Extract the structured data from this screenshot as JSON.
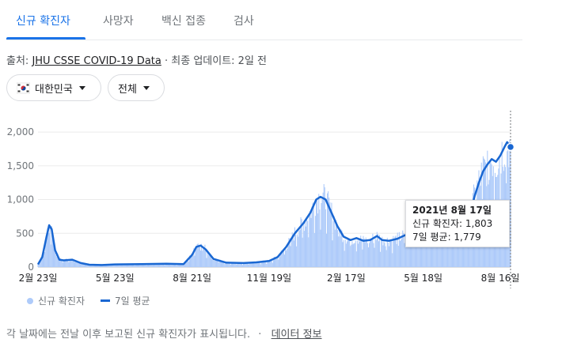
{
  "tabs": [
    "신규 확진자",
    "사망자",
    "백신 접종",
    "검사"
  ],
  "active_tab": 0,
  "source": {
    "prefix": "출처: ",
    "link": "JHU CSSE COVID-19 Data",
    "separator": " · ",
    "updated": "최종 업데이트: 2일 전"
  },
  "filters": {
    "country": "대한민국",
    "scope": "전체"
  },
  "tooltip": {
    "date": "2021년 8월 17일",
    "cases_line": "신규 확진자: 1,803",
    "avg_line": "7일 평균: 1,779"
  },
  "legend": {
    "cases": "신규 확진자",
    "avg": "7일 평균"
  },
  "footer": {
    "note": "각 날짜에는 전날 이후 보고된 신규 확진자가 표시됩니다.",
    "separator": "·",
    "link": "데이터 정보"
  },
  "colors": {
    "bars": "#aecbfa",
    "line": "#1967d2",
    "accent": "#1a73e8"
  },
  "chart_data": {
    "type": "bar",
    "ylim": [
      0,
      2200
    ],
    "y_ticks": [
      0,
      500,
      1000,
      1500,
      2000
    ],
    "y_tick_labels": [
      "0",
      "500",
      "1,000",
      "1,500",
      "2,000"
    ],
    "x_tick_labels": [
      "2월 23일",
      "5월 23일",
      "8월 21일",
      "11월 19일",
      "2월 17일",
      "5월 18일",
      "8월 16일"
    ],
    "x_tick_days": [
      0,
      90,
      180,
      270,
      360,
      450,
      540
    ],
    "series": [
      {
        "name": "7일 평균",
        "points": [
          [
            0,
            40
          ],
          [
            5,
            150
          ],
          [
            10,
            450
          ],
          [
            13,
            620
          ],
          [
            16,
            560
          ],
          [
            20,
            250
          ],
          [
            25,
            110
          ],
          [
            30,
            100
          ],
          [
            40,
            110
          ],
          [
            50,
            60
          ],
          [
            60,
            35
          ],
          [
            75,
            30
          ],
          [
            90,
            40
          ],
          [
            120,
            45
          ],
          [
            150,
            50
          ],
          [
            170,
            45
          ],
          [
            180,
            180
          ],
          [
            185,
            300
          ],
          [
            190,
            320
          ],
          [
            196,
            260
          ],
          [
            205,
            120
          ],
          [
            220,
            65
          ],
          [
            240,
            60
          ],
          [
            255,
            70
          ],
          [
            270,
            90
          ],
          [
            280,
            150
          ],
          [
            290,
            300
          ],
          [
            300,
            500
          ],
          [
            310,
            650
          ],
          [
            318,
            800
          ],
          [
            325,
            1000
          ],
          [
            330,
            1040
          ],
          [
            336,
            1000
          ],
          [
            343,
            800
          ],
          [
            350,
            600
          ],
          [
            357,
            450
          ],
          [
            365,
            400
          ],
          [
            372,
            430
          ],
          [
            380,
            390
          ],
          [
            388,
            400
          ],
          [
            396,
            460
          ],
          [
            402,
            400
          ],
          [
            410,
            390
          ],
          [
            420,
            420
          ],
          [
            430,
            480
          ],
          [
            440,
            530
          ],
          [
            450,
            600
          ],
          [
            460,
            650
          ],
          [
            470,
            640
          ],
          [
            480,
            620
          ],
          [
            490,
            630
          ],
          [
            500,
            700
          ],
          [
            505,
            800
          ],
          [
            510,
            1050
          ],
          [
            515,
            1250
          ],
          [
            520,
            1420
          ],
          [
            525,
            1520
          ],
          [
            530,
            1600
          ],
          [
            535,
            1560
          ],
          [
            540,
            1650
          ],
          [
            545,
            1780
          ],
          [
            548,
            1850
          ],
          [
            552,
            1779
          ]
        ]
      }
    ],
    "bar_day_range": [
      0,
      552
    ],
    "highlight_day": 552,
    "highlight_value": 1803
  }
}
